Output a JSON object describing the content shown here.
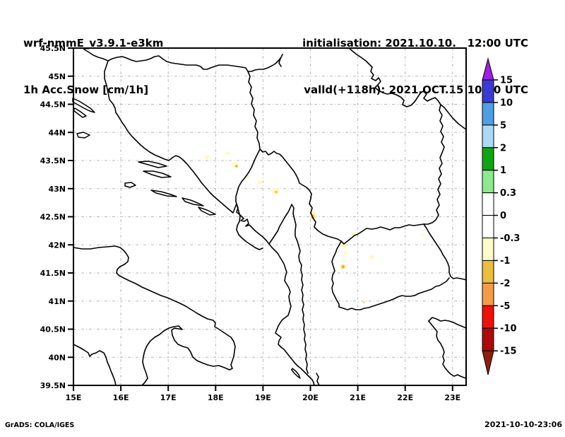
{
  "header": {
    "model_line": "wrf-nmmE_v3.9.1-e3km",
    "field_line": "1h Acc.Snow [cm/1h]",
    "init_line": "initialisation: 2021.10.10.   12:00 UTC",
    "valid_line": "valld(+118h): 2021.OCT.15 10:00 UTC"
  },
  "footer": {
    "left": "GrADS: COLA/IGES",
    "right": "2021-10-10-23:06"
  },
  "axes": {
    "lat_ticks": [
      {
        "label": "45.5N",
        "value": 45.5
      },
      {
        "label": "45N",
        "value": 45
      },
      {
        "label": "44.5N",
        "value": 44.5
      },
      {
        "label": "44N",
        "value": 44
      },
      {
        "label": "43.5N",
        "value": 43.5
      },
      {
        "label": "43N",
        "value": 43
      },
      {
        "label": "42.5N",
        "value": 42.5
      },
      {
        "label": "42N",
        "value": 42
      },
      {
        "label": "41.5N",
        "value": 41.5
      },
      {
        "label": "41N",
        "value": 41
      },
      {
        "label": "40.5N",
        "value": 40.5
      },
      {
        "label": "40N",
        "value": 40
      },
      {
        "label": "39.5N",
        "value": 39.5
      }
    ],
    "lon_ticks": [
      {
        "label": "15E",
        "value": 15
      },
      {
        "label": "16E",
        "value": 16
      },
      {
        "label": "17E",
        "value": 17
      },
      {
        "label": "18E",
        "value": 18
      },
      {
        "label": "19E",
        "value": 19
      },
      {
        "label": "20E",
        "value": 20
      },
      {
        "label": "21E",
        "value": 21
      },
      {
        "label": "22E",
        "value": 22
      },
      {
        "label": "23E",
        "value": 23
      }
    ],
    "extent": {
      "lat_min": 39.5,
      "lat_max": 45.5,
      "lon_min": 15,
      "lon_max": 23
    }
  },
  "colorbar": {
    "tick_labels": [
      "15",
      "10",
      "5",
      "2",
      "1",
      "0.3",
      "0",
      "-0.3",
      "-1",
      "-2",
      "-5",
      "-10",
      "-15"
    ],
    "segment_colors": [
      "#3A3AD4",
      "#4F9FE6",
      "#ABDAF6",
      "#0FA50F",
      "#8EE98E",
      "#FFFFFF",
      "#FFFFFF",
      "#FFFCC9",
      "#EBBE3F",
      "#F49C47",
      "#F01208",
      "#AD0A0A"
    ],
    "top_arrow_color": "#A21EE8",
    "bottom_arrow_color": "#8E1E10"
  },
  "grid_color": "#b9b9b9",
  "spot_colors": {
    "light": "#FFF9C6",
    "moderate": "#E9BC42",
    "heavy": "#F08A40"
  },
  "snow_spots": [
    {
      "lon": 17.82,
      "lat": 43.56,
      "rx": 4,
      "ry": 3,
      "level": "light"
    },
    {
      "lon": 18.26,
      "lat": 43.63,
      "rx": 3,
      "ry": 2.5,
      "level": "light"
    },
    {
      "lon": 18.41,
      "lat": 43.42,
      "rx": 5,
      "ry": 4,
      "level": "light"
    },
    {
      "lon": 18.44,
      "lat": 43.4,
      "rx": 2,
      "ry": 2,
      "level": "moderate"
    },
    {
      "lon": 18.67,
      "lat": 43.21,
      "rx": 3,
      "ry": 2.5,
      "level": "light"
    },
    {
      "lon": 18.93,
      "lat": 43.11,
      "rx": 4,
      "ry": 3,
      "level": "light"
    },
    {
      "lon": 19.26,
      "lat": 42.96,
      "rx": 6,
      "ry": 4,
      "level": "light"
    },
    {
      "lon": 19.28,
      "lat": 42.94,
      "rx": 2,
      "ry": 1.5,
      "level": "moderate"
    },
    {
      "lon": 20.05,
      "lat": 42.52,
      "rx": 5,
      "ry": 6,
      "level": "light"
    },
    {
      "lon": 20.05,
      "lat": 42.5,
      "rx": 2.5,
      "ry": 3,
      "level": "moderate"
    },
    {
      "lon": 20.01,
      "lat": 42.56,
      "rx": 1.5,
      "ry": 1.5,
      "level": "moderate"
    },
    {
      "lon": 20.9,
      "lat": 42.2,
      "rx": 3,
      "ry": 2.5,
      "level": "light"
    },
    {
      "lon": 20.72,
      "lat": 41.98,
      "rx": 4,
      "ry": 4,
      "level": "light"
    },
    {
      "lon": 20.74,
      "lat": 41.85,
      "rx": 3,
      "ry": 3,
      "level": "light"
    },
    {
      "lon": 20.68,
      "lat": 41.61,
      "rx": 5,
      "ry": 4.5,
      "level": "light"
    },
    {
      "lon": 20.69,
      "lat": 41.61,
      "rx": 2.5,
      "ry": 2.5,
      "level": "moderate"
    },
    {
      "lon": 20.69,
      "lat": 41.61,
      "rx": 1.2,
      "ry": 1.2,
      "level": "heavy"
    },
    {
      "lon": 21.29,
      "lat": 41.78,
      "rx": 4,
      "ry": 3,
      "level": "light"
    },
    {
      "lon": 21.13,
      "lat": 40.98,
      "rx": 2.5,
      "ry": 2,
      "level": "light"
    },
    {
      "lon": 21.13,
      "lat": 40.98,
      "rx": 1,
      "ry": 1,
      "level": "moderate"
    },
    {
      "lon": 22.39,
      "lat": 42.17,
      "rx": 3,
      "ry": 2,
      "level": "light"
    }
  ]
}
